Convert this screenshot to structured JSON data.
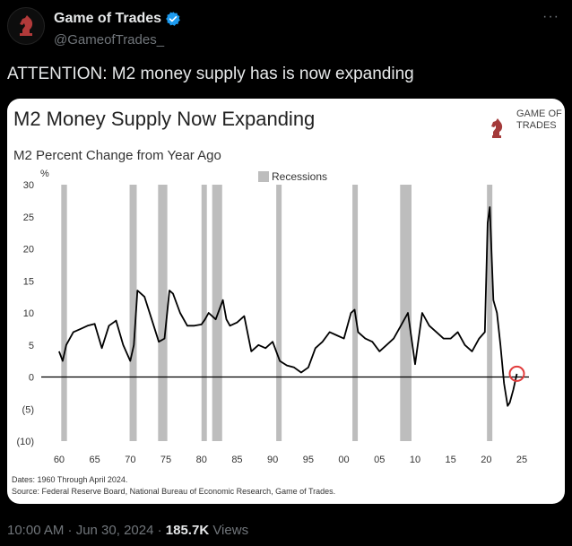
{
  "tweet": {
    "author_name": "Game of Trades",
    "handle": "@GameofTrades_",
    "more_label": "···",
    "text": "ATTENTION: M2 money supply has is now expanding",
    "time": "10:00 AM · Jun 30, 2024 · ",
    "views_count": "185.7K",
    "views_label": " Views"
  },
  "colors": {
    "accent": "#1d9bf0",
    "recession": "#bdbdbd",
    "highlight": "#e23c3c",
    "logo_red": "#a43a3a"
  },
  "logo": {
    "line1": "Game of",
    "line2": "Trades"
  },
  "chart_data": {
    "type": "line",
    "title": "M2 Money Supply Now Expanding",
    "subtitle": "M2 Percent Change from Year Ago",
    "y_unit": "%",
    "legend": "Recessions",
    "legend_position": "top-center",
    "xlim": [
      1959,
      2026
    ],
    "ylim": [
      -10,
      30
    ],
    "x_ticks": [
      60,
      65,
      70,
      75,
      80,
      85,
      90,
      95,
      0,
      5,
      10,
      15,
      20,
      25
    ],
    "x_tick_labels": [
      "60",
      "65",
      "70",
      "75",
      "80",
      "85",
      "90",
      "95",
      "00",
      "05",
      "10",
      "15",
      "20",
      "25"
    ],
    "y_ticks": [
      30,
      25,
      20,
      15,
      10,
      5,
      0,
      -5,
      -10
    ],
    "y_tick_labels": [
      "30",
      "25",
      "20",
      "15",
      "10",
      "5",
      "0",
      "(5)",
      "(10)"
    ],
    "recessions": [
      [
        1960.3,
        1961.1
      ],
      [
        1969.9,
        1970.9
      ],
      [
        1973.9,
        1975.2
      ],
      [
        1980.0,
        1980.5
      ],
      [
        1981.5,
        1982.9
      ],
      [
        1990.5,
        1991.2
      ],
      [
        2001.2,
        2001.9
      ],
      [
        2007.9,
        2009.5
      ],
      [
        2020.1,
        2020.4
      ]
    ],
    "series": [
      {
        "x": [
          1960,
          1960.5,
          1961,
          1962,
          1963,
          1964,
          1965,
          1966,
          1967,
          1968,
          1969,
          1970,
          1970.5,
          1971,
          1971.5,
          1972,
          1973,
          1974,
          1974.8,
          1975.5,
          1976,
          1977,
          1978,
          1979,
          1980,
          1980.5,
          1981,
          1982,
          1983,
          1983.5,
          1984,
          1985,
          1986,
          1987,
          1988,
          1989,
          1990,
          1991,
          1992,
          1993,
          1994,
          1995,
          1996,
          1997,
          1998,
          1999,
          2000,
          2001,
          2001.5,
          2002,
          2003,
          2004,
          2005,
          2006,
          2007,
          2008,
          2009,
          2010,
          2011,
          2012,
          2013,
          2014,
          2015,
          2016,
          2017,
          2018,
          2019,
          2019.8,
          2020.2,
          2020.5,
          2021,
          2021.5,
          2022,
          2022.5,
          2023,
          2023.3,
          2023.8,
          2024.3
        ],
        "values": [
          4.0,
          2.5,
          5.0,
          7.0,
          7.5,
          8.0,
          8.3,
          4.5,
          8.0,
          8.8,
          5.0,
          2.5,
          5.0,
          13.5,
          13.0,
          12.5,
          9.0,
          5.5,
          6.0,
          13.5,
          13.0,
          10.0,
          8.0,
          8.0,
          8.2,
          9.0,
          10.0,
          9.0,
          12.0,
          9.0,
          8.0,
          8.5,
          9.5,
          4.0,
          5.0,
          4.5,
          5.5,
          2.5,
          1.8,
          1.5,
          0.7,
          1.5,
          4.5,
          5.5,
          7.0,
          6.5,
          6.0,
          10.0,
          10.5,
          7.0,
          6.0,
          5.5,
          4.0,
          5.0,
          6.0,
          8.0,
          10.0,
          2.0,
          10.0,
          8.0,
          7.0,
          6.0,
          6.0,
          7.0,
          5.0,
          4.0,
          6.0,
          7.0,
          24.0,
          26.5,
          12.0,
          10.0,
          5.0,
          -1.0,
          -4.5,
          -4.0,
          -2.0,
          0.5
        ]
      }
    ],
    "annotation": {
      "x": 2024.3,
      "y": 0.5,
      "style": "red circle"
    },
    "footnote_1": "Dates: 1960 Through April 2024.",
    "footnote_2": "Source: Federal Reserve Board, National Bureau of Economic Research, Game of Trades."
  }
}
